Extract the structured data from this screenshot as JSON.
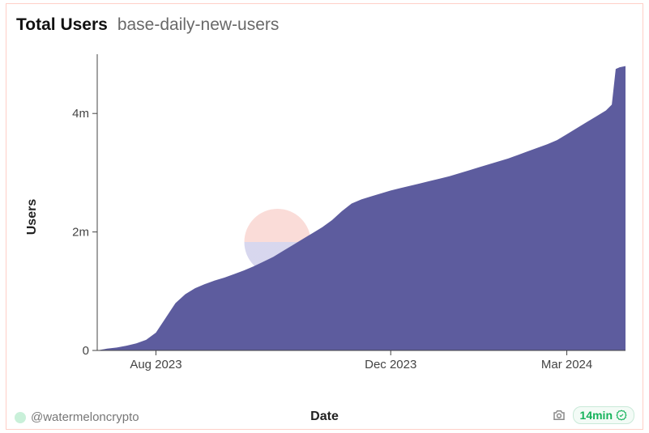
{
  "header": {
    "title": "Total Users",
    "subtitle": "base-daily-new-users"
  },
  "axes": {
    "y_label": "Users",
    "x_label": "Date"
  },
  "footer": {
    "author_handle": "@watermeloncrypto",
    "refresh_age": "14min"
  },
  "watermark": {
    "text": "Dune"
  },
  "chart": {
    "type": "area",
    "background_color": "#ffffff",
    "border_color": "#ffcfc7",
    "series_color": "#5d5c9e",
    "series_opacity": 1.0,
    "axis_color": "#444444",
    "tick_color": "#444444",
    "tick_font_size": 15,
    "label_font_size": 16,
    "title_font_size": 21,
    "y": {
      "lim": [
        0,
        5000000
      ],
      "ticks": [
        0,
        2000000,
        4000000
      ],
      "tick_labels": [
        "0",
        "2m",
        "4m"
      ]
    },
    "x": {
      "domain_days": [
        0,
        270
      ],
      "ticks_days": [
        30,
        150,
        240
      ],
      "tick_labels": [
        "Aug 2023",
        "Dec 2023",
        "Mar 2024"
      ]
    },
    "data": {
      "day": [
        0,
        5,
        10,
        15,
        20,
        25,
        30,
        35,
        40,
        45,
        50,
        55,
        60,
        65,
        70,
        75,
        80,
        85,
        90,
        95,
        100,
        105,
        110,
        115,
        120,
        125,
        130,
        135,
        140,
        145,
        150,
        155,
        160,
        165,
        170,
        175,
        180,
        185,
        190,
        195,
        200,
        205,
        210,
        215,
        220,
        225,
        230,
        235,
        240,
        245,
        250,
        255,
        260,
        263,
        265,
        267,
        270
      ],
      "users": [
        0,
        30000,
        50000,
        80000,
        120000,
        180000,
        300000,
        550000,
        800000,
        950000,
        1050000,
        1120000,
        1180000,
        1230000,
        1290000,
        1350000,
        1420000,
        1500000,
        1580000,
        1680000,
        1780000,
        1880000,
        1980000,
        2080000,
        2200000,
        2350000,
        2480000,
        2550000,
        2600000,
        2650000,
        2700000,
        2740000,
        2780000,
        2820000,
        2860000,
        2900000,
        2940000,
        2990000,
        3040000,
        3090000,
        3140000,
        3190000,
        3240000,
        3300000,
        3360000,
        3420000,
        3480000,
        3550000,
        3650000,
        3750000,
        3850000,
        3950000,
        4050000,
        4150000,
        4750000,
        4780000,
        4800000
      ]
    }
  }
}
